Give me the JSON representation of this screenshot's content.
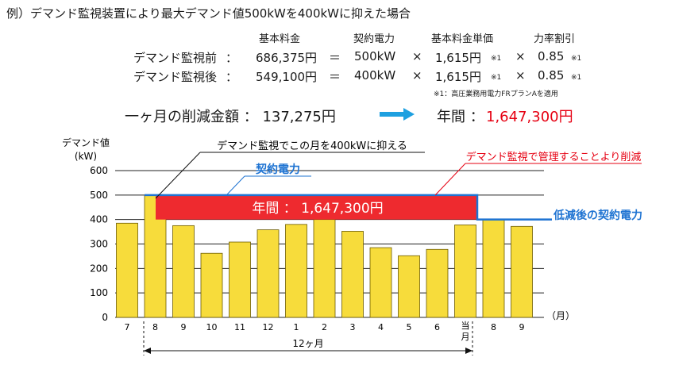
{
  "title": "例）デマンド監視装置により最大デマンド値500kWを400kWに抑えた場合",
  "calc": {
    "headers": [
      "基本料金",
      "契約電力",
      "基本料金単価",
      "力率割引"
    ],
    "rows": [
      {
        "label": "デマンド監視前",
        "colon": "：",
        "fee": "686,375円",
        "eq": "＝",
        "power": "500kW",
        "x1": "×",
        "unit_price": "1,615円",
        "mark": "※1",
        "x2": "×",
        "discount": "0.85",
        "mark2": "※1"
      },
      {
        "label": "デマンド監視後",
        "colon": "：",
        "fee": "549,100円",
        "eq": "＝",
        "power": "400kW",
        "x1": "×",
        "unit_price": "1,615円",
        "mark": "※1",
        "x2": "×",
        "discount": "0.85",
        "mark2": "※1"
      }
    ],
    "note": "※1：高圧業務用電力FRプランAを適用",
    "monthly_label": "一ヶ月の削減金額 ： 137,275円",
    "annual_label": "年間 ：",
    "annual_value": "1,647,300円"
  },
  "colors": {
    "bar": "#f7dc3b",
    "bar_stroke": "#6b5a00",
    "band": "#ee2a2f",
    "contract_line": "#1e73d2",
    "accent_red": "#e60012"
  },
  "chart_data": {
    "type": "bar",
    "ylabel": "デマンド値\n(kW)",
    "xunit": "（月）",
    "categories": [
      "7",
      "8",
      "9",
      "10",
      "11",
      "12",
      "1",
      "2",
      "3",
      "4",
      "5",
      "6",
      "当月",
      "8",
      "9"
    ],
    "values": [
      385,
      500,
      375,
      262,
      308,
      358,
      380,
      400,
      352,
      285,
      252,
      278,
      378,
      400,
      372
    ],
    "ylim": [
      0,
      600
    ],
    "yticks": [
      0,
      100,
      200,
      300,
      400,
      500,
      600
    ],
    "grid": true,
    "contract_before": 500,
    "contract_after": 400,
    "annotations": {
      "cap_label": "デマンド監視でこの月を400kWに抑える",
      "contract_label": "契約電力",
      "reduce_label": "デマンド監視で管理することより削減",
      "band_label": "年間 ： 1,647,300円",
      "after_label": "低減後の契約電力",
      "span_label": "12ヶ月"
    }
  }
}
